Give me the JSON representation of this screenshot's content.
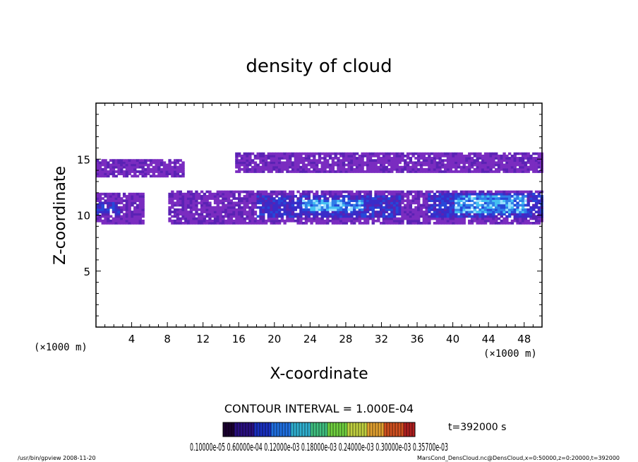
{
  "chart_data": {
    "type": "heatmap",
    "title": "density of cloud",
    "xlabel": "X-coordinate",
    "ylabel": "Z-coordinate",
    "x_unit": "(×1000 m)",
    "y_unit": "(×1000 m)",
    "xlim": [
      0,
      50
    ],
    "ylim": [
      0,
      20
    ],
    "x_ticks": [
      4,
      8,
      12,
      16,
      20,
      24,
      28,
      32,
      36,
      40,
      44,
      48
    ],
    "y_ticks": [
      5,
      10,
      15
    ],
    "contour_interval_label": "CONTOUR INTERVAL = 1.000E-04",
    "time_label": "t=392000 s",
    "colorbar_label": "0.10000e-05 0.60000e-04 0.12000e-03 0.18000e-03 0.24000e-03 0.30000e-03 0.35700e-03",
    "footer_left": "/usr/bin/gpview   2008-11-20",
    "footer_right": "MarsCond_DensCloud.nc@DensCloud,x=0:50000,z=0:20000,t=392000",
    "colors": {
      "low": "#6a1fb0",
      "mid": "#1f3fd0",
      "high": "#3fc8f0"
    },
    "regions": [
      {
        "level": 1,
        "x": [
          0,
          9.8
        ],
        "z": [
          13.2,
          14.8
        ]
      },
      {
        "level": 1,
        "x": [
          15.5,
          50
        ],
        "z": [
          13.6,
          15.4
        ]
      },
      {
        "level": 1,
        "x": [
          0,
          5.2
        ],
        "z": [
          9.2,
          11.8
        ]
      },
      {
        "level": 1,
        "x": [
          8,
          50
        ],
        "z": [
          9.2,
          12.0
        ]
      },
      {
        "level": 2,
        "x": [
          0,
          2.5
        ],
        "z": [
          9.8,
          11.0
        ]
      },
      {
        "level": 2,
        "x": [
          18,
          34
        ],
        "z": [
          9.6,
          11.6
        ]
      },
      {
        "level": 2,
        "x": [
          37,
          50
        ],
        "z": [
          9.6,
          11.8
        ]
      },
      {
        "level": 3,
        "x": [
          23,
          30
        ],
        "z": [
          10.2,
          11.3
        ]
      },
      {
        "level": 3,
        "x": [
          40,
          48
        ],
        "z": [
          10.0,
          11.6
        ]
      }
    ]
  }
}
